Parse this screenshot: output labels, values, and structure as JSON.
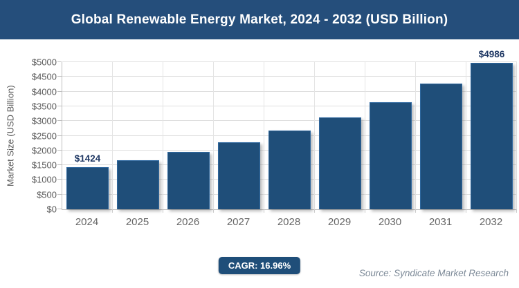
{
  "header": {
    "title": "Global Renewable Energy Market, 2024 - 2032 (USD Billion)"
  },
  "chart_data": {
    "type": "bar",
    "title": "Global Renewable Energy Market, 2024 - 2032 (USD Billion)",
    "categories": [
      "2024",
      "2025",
      "2026",
      "2027",
      "2028",
      "2029",
      "2030",
      "2031",
      "2032"
    ],
    "values": [
      1424,
      1666,
      1948,
      2278,
      2665,
      3117,
      3645,
      4264,
      4986
    ],
    "data_labels": [
      {
        "index": 0,
        "text": "$1424"
      },
      {
        "index": 8,
        "text": "$4986"
      }
    ],
    "xlabel": "",
    "ylabel": "Market Size (USD Billion)",
    "ylim": [
      0,
      5000
    ],
    "ytick_values": [
      0,
      500,
      1000,
      1500,
      2000,
      2500,
      3000,
      3500,
      4000,
      4500,
      5000
    ],
    "ytick_labels": [
      "$0",
      "$500",
      "$1000",
      "$1500",
      "$2000",
      "$2500",
      "$3000",
      "$3500",
      "$4000",
      "$4500",
      "$5000"
    ],
    "grid": true,
    "legend": "none",
    "bar_color": "#1f4e79"
  },
  "footer": {
    "cagr_label": "CAGR: 16.96%",
    "source": "Source: Syndicate Market Research"
  },
  "colors": {
    "header_bg": "#254e7b",
    "header_text": "#ffffff",
    "bar_fill": "#1f4e79",
    "bar_border": "#3069a0",
    "data_label_text": "#1f3864",
    "gridline": "#dedede",
    "axis_line": "#bfbfbf",
    "tick_text": "#595959",
    "x_label_text": "#666666",
    "badge_bg": "#1f4e79",
    "badge_text": "#ffffff",
    "source_text": "#7b8896"
  }
}
